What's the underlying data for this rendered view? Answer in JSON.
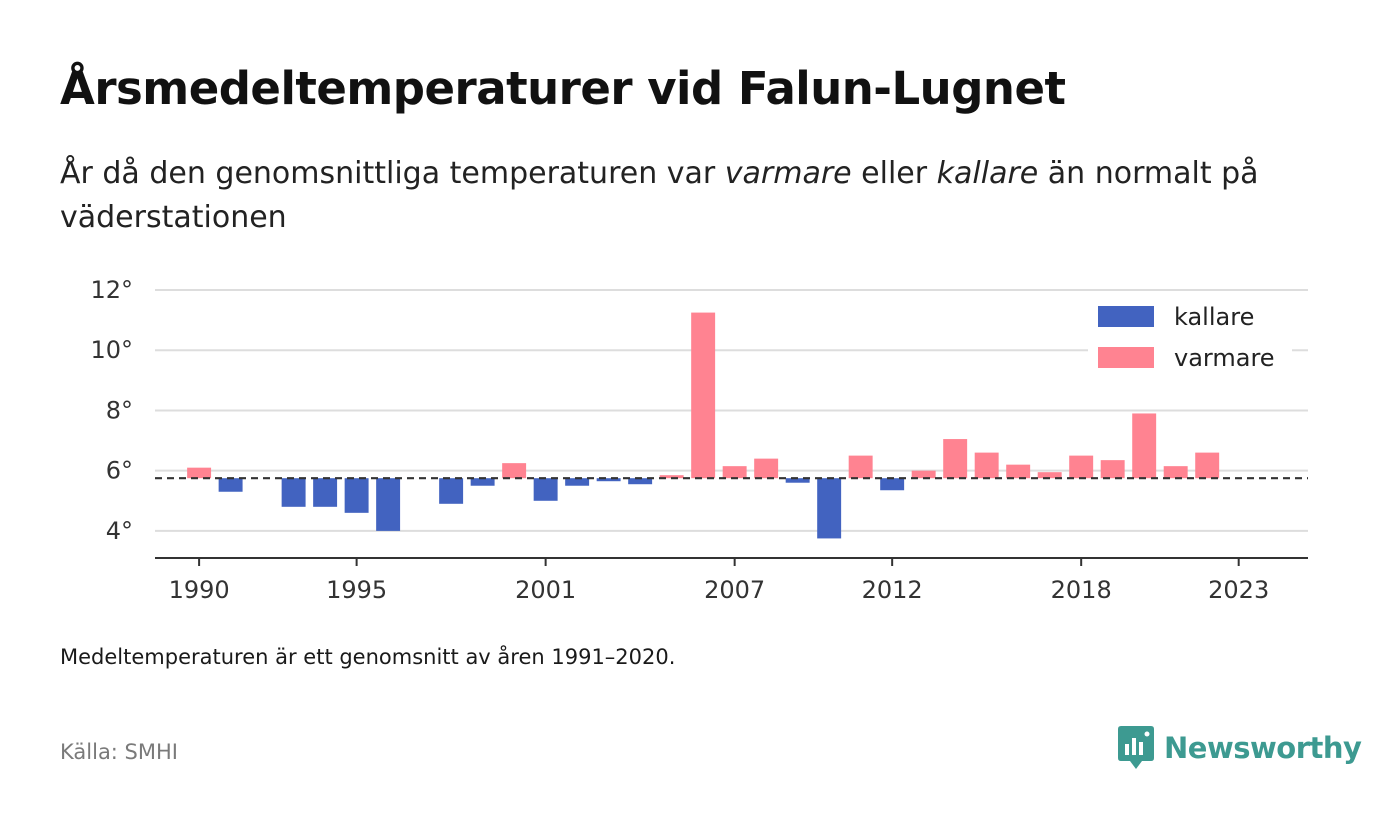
{
  "header": {
    "title": "Årsmedeltemperaturer vid Falun-Lugnet",
    "subtitle_part1": "År då den genomsnittliga temperaturen var ",
    "subtitle_em1": "varmare",
    "subtitle_part2": " eller ",
    "subtitle_em2": "kallare",
    "subtitle_part3": " än normalt på väderstationen"
  },
  "footer": {
    "note": "Medeltemperaturen är ett genomsnitt av åren 1991–2020.",
    "source": "Källa: SMHI",
    "brand": "Newsworthy"
  },
  "colors": {
    "kallare": "#4263c0",
    "varmare": "#ff8391",
    "grid": "#dddddd",
    "axis": "#333333",
    "reference_line": "#333333",
    "brand": "#3d9a91"
  },
  "chart_data": {
    "type": "bar",
    "title": "Årsmedeltemperaturer vid Falun-Lugnet",
    "subtitle": "År då den genomsnittliga temperaturen var varmare eller kallare än normalt på väderstationen",
    "baseline": 5.75,
    "baseline_style": "dashed",
    "ylim": [
      3.1,
      12.0
    ],
    "yticks": [
      4,
      6,
      8,
      10,
      12
    ],
    "ytick_labels": [
      "4°",
      "6°",
      "8°",
      "10°",
      "12°"
    ],
    "xlim": [
      1988.6,
      2025.2
    ],
    "xticks": [
      1990,
      1995,
      2001,
      2007,
      2012,
      2018,
      2023
    ],
    "xtick_labels": [
      "1990",
      "1995",
      "2001",
      "2007",
      "2012",
      "2018",
      "2023"
    ],
    "grid": true,
    "legend_position": "top-right",
    "series": [
      {
        "name": "kallare",
        "color": "#4263c0"
      },
      {
        "name": "varmare",
        "color": "#ff8391"
      }
    ],
    "points": [
      {
        "year": 1990,
        "value": 6.1
      },
      {
        "year": 1991,
        "value": 5.3
      },
      {
        "year": 1993,
        "value": 4.8
      },
      {
        "year": 1994,
        "value": 4.8
      },
      {
        "year": 1995,
        "value": 4.6
      },
      {
        "year": 1996,
        "value": 4.0
      },
      {
        "year": 1998,
        "value": 4.9
      },
      {
        "year": 1999,
        "value": 5.5
      },
      {
        "year": 2000,
        "value": 6.25
      },
      {
        "year": 2001,
        "value": 5.0
      },
      {
        "year": 2002,
        "value": 5.5
      },
      {
        "year": 2003,
        "value": 5.65
      },
      {
        "year": 2004,
        "value": 5.55
      },
      {
        "year": 2005,
        "value": 5.85
      },
      {
        "year": 2006,
        "value": 11.25
      },
      {
        "year": 2007,
        "value": 6.15
      },
      {
        "year": 2008,
        "value": 6.4
      },
      {
        "year": 2009,
        "value": 5.6
      },
      {
        "year": 2010,
        "value": 3.75
      },
      {
        "year": 2011,
        "value": 6.5
      },
      {
        "year": 2012,
        "value": 5.35
      },
      {
        "year": 2013,
        "value": 6.0
      },
      {
        "year": 2014,
        "value": 7.05
      },
      {
        "year": 2015,
        "value": 6.6
      },
      {
        "year": 2016,
        "value": 6.2
      },
      {
        "year": 2017,
        "value": 5.95
      },
      {
        "year": 2018,
        "value": 6.5
      },
      {
        "year": 2019,
        "value": 6.35
      },
      {
        "year": 2020,
        "value": 7.9
      },
      {
        "year": 2021,
        "value": 6.15
      },
      {
        "year": 2022,
        "value": 6.6
      }
    ]
  }
}
